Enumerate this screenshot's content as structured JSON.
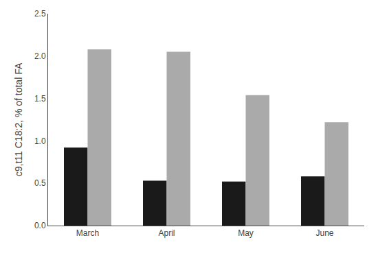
{
  "chart_data": {
    "type": "bar",
    "categories": [
      "March",
      "April",
      "May",
      "June"
    ],
    "series": [
      {
        "color": "#1a1a1a",
        "values": [
          0.92,
          0.53,
          0.52,
          0.58
        ]
      },
      {
        "color": "#aaaaaa",
        "values": [
          2.08,
          2.05,
          1.54,
          1.22
        ]
      }
    ],
    "ylabel": "c9,t11 C18:2, % of total FA",
    "ylim": [
      0.0,
      2.5
    ],
    "yticks": [
      {
        "value": 0,
        "label": "0.0"
      },
      0.5,
      {
        "value": 1,
        "label": "1.0"
      },
      1.5,
      {
        "value": 2,
        "label": "2.0"
      },
      2.5
    ],
    "grid": false
  }
}
